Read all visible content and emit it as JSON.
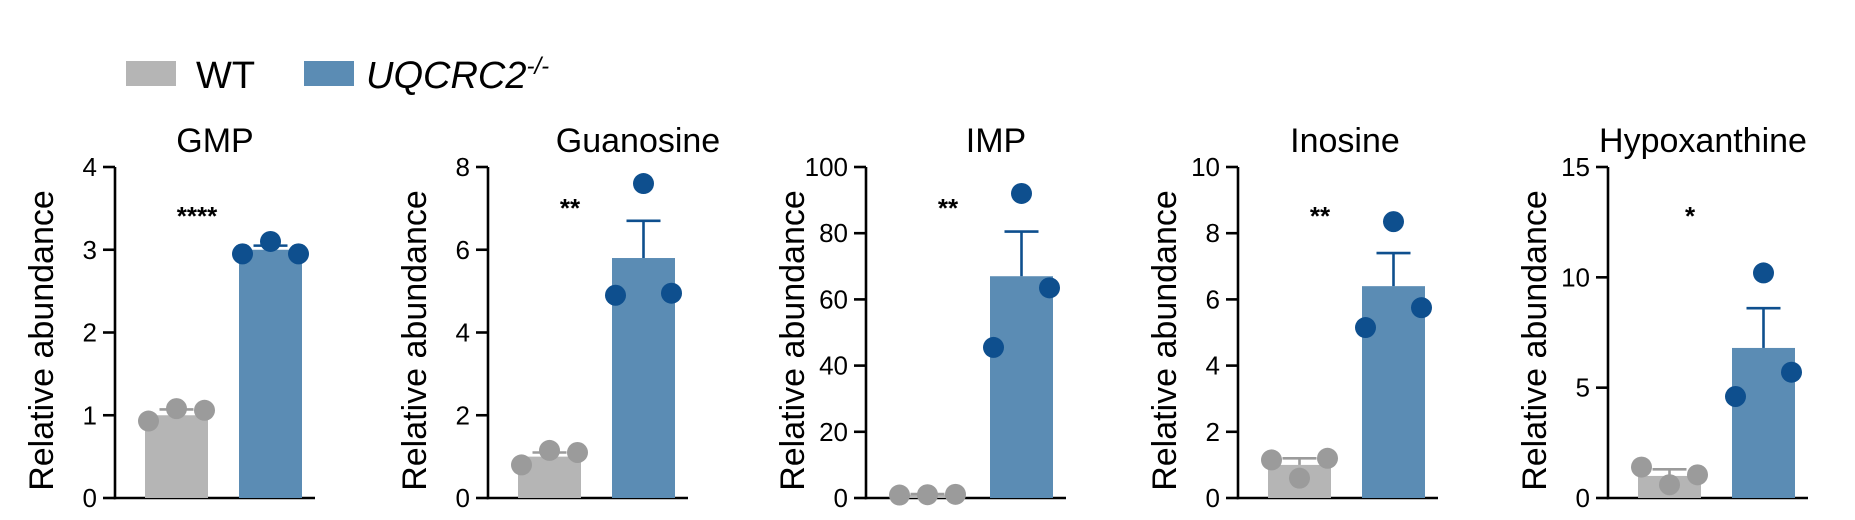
{
  "legend": [
    {
      "label": "WT",
      "color": "#b5b5b5",
      "italic": false
    },
    {
      "label": "UQCRC2",
      "superscript": "-/-",
      "color": "#5b8cb4",
      "italic": true
    }
  ],
  "colors": {
    "wt_bar": "#b5b5b5",
    "wt_point": "#9b9b9b",
    "ko_bar": "#5b8cb4",
    "ko_point": "#0e4f8e",
    "wt_error": "#9b9b9b",
    "ko_error": "#0e4f8e"
  },
  "chart_data": [
    {
      "type": "bar",
      "title": "GMP",
      "ylabel": "Relative abundance",
      "categories": [
        "WT",
        "UQCRC2-/-"
      ],
      "ylim": [
        0,
        4
      ],
      "yticks": [
        0,
        1,
        2,
        3,
        4
      ],
      "values": [
        1.0,
        3.0
      ],
      "errors": [
        0.07,
        0.05
      ],
      "points": [
        [
          0.93,
          1.08,
          1.06
        ],
        [
          2.95,
          3.1,
          2.95
        ]
      ],
      "significance": "****"
    },
    {
      "type": "bar",
      "title": "Guanosine",
      "ylabel": "Relative abundance",
      "categories": [
        "WT",
        "UQCRC2-/-"
      ],
      "ylim": [
        0,
        8
      ],
      "yticks": [
        0,
        2,
        4,
        6,
        8
      ],
      "values": [
        1.0,
        5.8
      ],
      "errors": [
        0.1,
        0.9
      ],
      "points": [
        [
          0.8,
          1.15,
          1.1
        ],
        [
          4.9,
          7.6,
          4.95
        ]
      ],
      "significance": "**"
    },
    {
      "type": "bar",
      "title": "IMP",
      "ylabel": "Relative abundance",
      "categories": [
        "WT",
        "UQCRC2-/-"
      ],
      "ylim": [
        0,
        100
      ],
      "yticks": [
        0,
        20,
        40,
        60,
        80,
        100
      ],
      "values": [
        1.0,
        67
      ],
      "errors": [
        0.2,
        13.5
      ],
      "points": [
        [
          0.9,
          1.0,
          1.1
        ],
        [
          45.5,
          92,
          63.5
        ]
      ],
      "significance": "**"
    },
    {
      "type": "bar",
      "title": "Inosine",
      "ylabel": "Relative abundance",
      "categories": [
        "WT",
        "UQCRC2-/-"
      ],
      "ylim": [
        0,
        10
      ],
      "yticks": [
        0,
        2,
        4,
        6,
        8,
        10
      ],
      "values": [
        1.0,
        6.4
      ],
      "errors": [
        0.2,
        1.0
      ],
      "points": [
        [
          1.15,
          0.6,
          1.2
        ],
        [
          5.15,
          8.35,
          5.75
        ]
      ],
      "significance": "**"
    },
    {
      "type": "bar",
      "title": "Hypoxanthine",
      "ylabel": "Relative abundance",
      "categories": [
        "WT",
        "UQCRC2-/-"
      ],
      "ylim": [
        0,
        15
      ],
      "yticks": [
        0,
        5,
        10,
        15
      ],
      "values": [
        1.0,
        6.8
      ],
      "errors": [
        0.3,
        1.8
      ],
      "points": [
        [
          1.4,
          0.6,
          1.05
        ],
        [
          4.6,
          10.2,
          5.7
        ]
      ],
      "significance": "*"
    }
  ]
}
